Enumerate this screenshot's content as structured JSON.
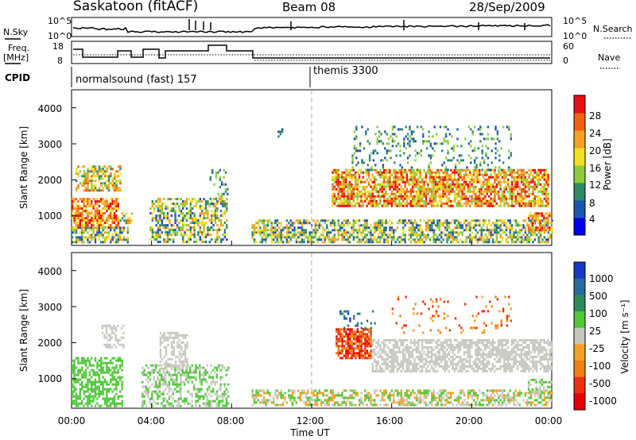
{
  "header": {
    "site": "Saskatoon (fitACF)",
    "beam": "Beam 08",
    "date": "28/Sep/2009"
  },
  "status_rows": {
    "nsky_label": "N.Sky",
    "nsky_ticks": [
      "10^5",
      "10^0"
    ],
    "nsearch_label": "N.Search",
    "nsearch_ticks": [
      "10^5",
      "10^0"
    ],
    "freq_label_1": "Freq.",
    "freq_label_2": "[MHz]",
    "freq_ticks": [
      "18",
      "8"
    ],
    "nave_label": "Nave",
    "nave_ticks": [
      "60",
      "0"
    ],
    "cpid_label": "CPID",
    "cpid_segments": [
      {
        "label": "normalsound (fast) 157",
        "start_hour": 0
      },
      {
        "label": "themis 3300",
        "start_hour": 12
      }
    ]
  },
  "chart_data": [
    {
      "type": "heatmap",
      "name": "power",
      "ylabel": "Slant Range [km]",
      "yticks": [
        "1000",
        "2000",
        "3000",
        "4000"
      ],
      "ylim": [
        180,
        4500
      ],
      "xlim": [
        0,
        24
      ],
      "colorbar_label": "Power [dB]",
      "colorbar_ticks": [
        "4",
        "8",
        "12",
        "16",
        "20",
        "24",
        "28"
      ],
      "colors": [
        "#0000ee",
        "#1a55b0",
        "#2f8a5f",
        "#8ccd3a",
        "#f2e020",
        "#f5a020",
        "#f06010",
        "#e81010"
      ]
    },
    {
      "type": "heatmap",
      "name": "velocity",
      "ylabel": "Slant Range [km]",
      "yticks": [
        "1000",
        "2000",
        "3000",
        "4000"
      ],
      "ylim": [
        180,
        4500
      ],
      "xlim": [
        0,
        24
      ],
      "xlabel": "Time UT",
      "xticks": [
        "00:00",
        "04:00",
        "08:00",
        "12:00",
        "16:00",
        "20:00",
        "00:00"
      ],
      "colorbar_label": "Velocity [m s⁻¹]",
      "colorbar_ticks": [
        "1000",
        "500",
        "100",
        "25",
        "-25",
        "-100",
        "-500",
        "-1000"
      ],
      "colors": [
        "#1638c8",
        "#2a6b9e",
        "#2e8b57",
        "#50c838",
        "#c8c8c0",
        "#f5a020",
        "#f08010",
        "#ee3010",
        "#e60000"
      ]
    }
  ]
}
